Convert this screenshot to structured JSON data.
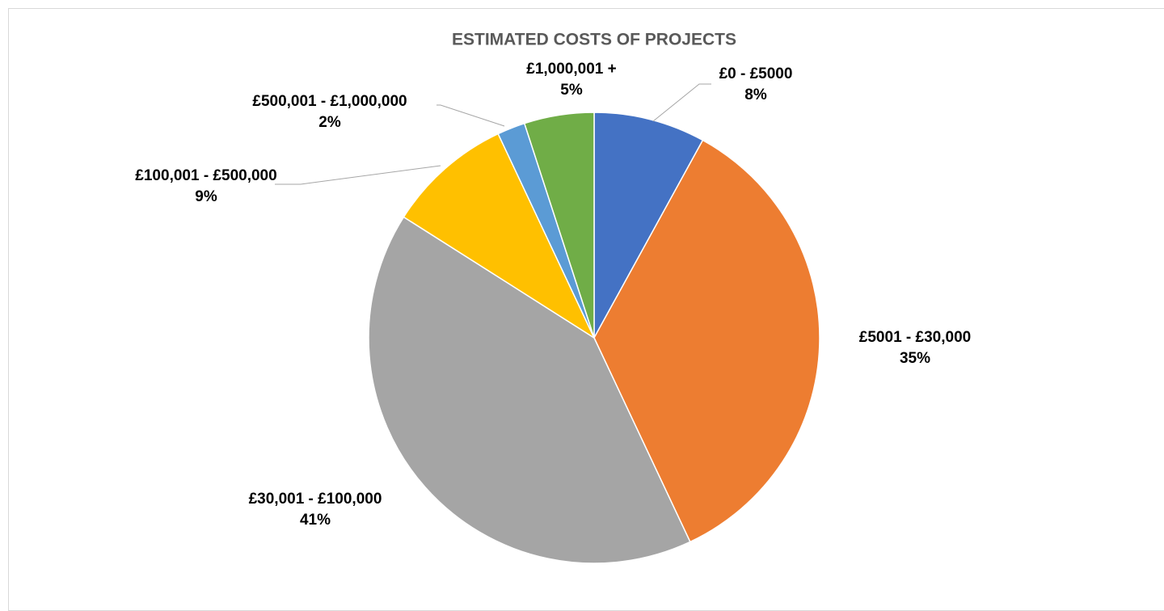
{
  "chart_data": {
    "type": "pie",
    "title": "ESTIMATED COSTS OF PROJECTS",
    "categories": [
      "£0 - £5000",
      "£5001 - £30,000",
      "£30,001 - £100,000",
      "£100,001 - £500,000",
      "£500,001 - £1,000,000",
      "£1,000,001 +"
    ],
    "values": [
      8,
      35,
      41,
      9,
      2,
      5
    ],
    "value_labels": [
      "8%",
      "35%",
      "41%",
      "9%",
      "2%",
      "5%"
    ],
    "colors": [
      "#4472c4",
      "#ed7d31",
      "#a5a5a5",
      "#ffc000",
      "#5b9bd5",
      "#70ad47"
    ]
  }
}
